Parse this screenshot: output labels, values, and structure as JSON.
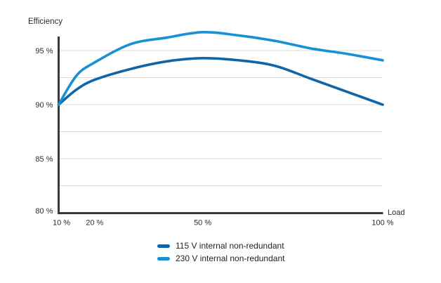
{
  "header": {
    "title": "Efficiency"
  },
  "axes": {
    "y_title": "Efficiency",
    "x_title": "Load"
  },
  "colors": {
    "background": "#ffffff",
    "axis": "#3a3a3a",
    "gridline": "#d9d9d9",
    "tick_text": "#2d2d2d",
    "series_115v": "#0f65a8",
    "series_230v": "#1791d2"
  },
  "chart_data": {
    "type": "line",
    "title": "Efficiency",
    "xlabel": "Load",
    "ylabel": "Efficiency",
    "x_unit": "%",
    "y_unit": "%",
    "xlim": [
      10,
      100
    ],
    "ylim": [
      80,
      96.3
    ],
    "x_ticks": [
      10,
      20,
      50,
      100
    ],
    "y_ticks": [
      95,
      90,
      85,
      80
    ],
    "tick_suffix": " %",
    "gridlines_y": [
      95,
      92.5,
      90,
      87.5,
      85,
      82.5
    ],
    "grid": "horizontal-only",
    "legend_position": "bottom-center",
    "series": [
      {
        "name": "115 V internal non-redundant",
        "color": "#0f65a8",
        "x": [
          10,
          15,
          20,
          30,
          40,
          50,
          60,
          70,
          80,
          90,
          100
        ],
        "y": [
          90.0,
          91.4,
          92.3,
          93.3,
          94.0,
          94.3,
          94.1,
          93.6,
          92.4,
          91.2,
          90.0
        ]
      },
      {
        "name": "230 V internal non-redundant",
        "color": "#1791d2",
        "x": [
          10,
          15,
          20,
          30,
          40,
          50,
          60,
          70,
          80,
          90,
          100
        ],
        "y": [
          90.0,
          92.7,
          93.9,
          95.6,
          96.2,
          96.7,
          96.4,
          95.9,
          95.2,
          94.7,
          94.1
        ]
      }
    ]
  }
}
